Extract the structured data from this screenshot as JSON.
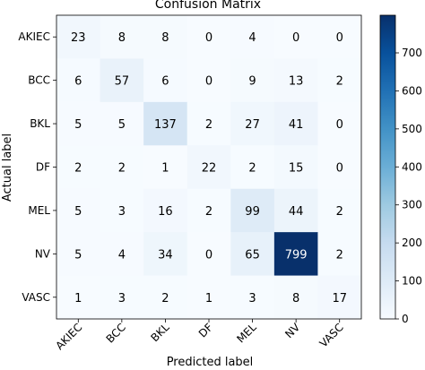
{
  "chart_data": {
    "type": "heatmap",
    "title": "Confusion Matrix",
    "xlabel": "Predicted label",
    "ylabel": "Actual label",
    "x_categories": [
      "AKIEC",
      "BCC",
      "BKL",
      "DF",
      "MEL",
      "NV",
      "VASC"
    ],
    "y_categories": [
      "AKIEC",
      "BCC",
      "BKL",
      "DF",
      "MEL",
      "NV",
      "VASC"
    ],
    "matrix": [
      [
        23,
        8,
        8,
        0,
        4,
        0,
        0
      ],
      [
        6,
        57,
        6,
        0,
        9,
        13,
        2
      ],
      [
        5,
        5,
        137,
        2,
        27,
        41,
        0
      ],
      [
        2,
        2,
        1,
        22,
        2,
        15,
        0
      ],
      [
        5,
        3,
        16,
        2,
        99,
        44,
        2
      ],
      [
        5,
        4,
        34,
        0,
        65,
        799,
        2
      ],
      [
        1,
        3,
        2,
        1,
        3,
        8,
        17
      ]
    ],
    "colormap": "Blues",
    "colorbar": {
      "min": 0,
      "max": 799,
      "ticks": [
        "0",
        "100",
        "200",
        "300",
        "400",
        "500",
        "600",
        "700"
      ]
    },
    "colors": {
      "low": "#f7fbff",
      "high": "#08306b",
      "text_on_light": "#000000",
      "text_on_dark": "#ffffff"
    }
  }
}
